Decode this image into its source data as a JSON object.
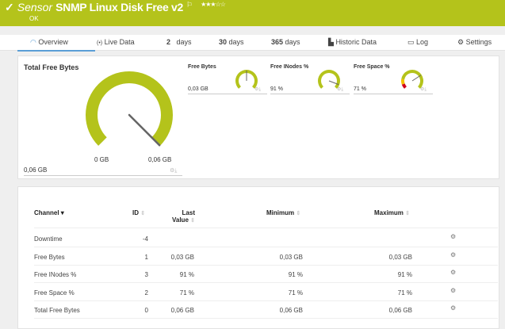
{
  "header": {
    "status_icon": "check-icon",
    "sensor_label": "Sensor",
    "title": "SNMP Linux Disk Free v2",
    "flag_icon": "flag-icon",
    "stars": "★★★☆☆",
    "rating": 3,
    "status": "OK",
    "color": "#b4c31b"
  },
  "tabs": [
    {
      "label": "Overview",
      "icon": "gauge-icon",
      "active": true
    },
    {
      "label": "Live Data",
      "icon": "broadcast-icon"
    },
    {
      "num": "2",
      "label": "days"
    },
    {
      "num": "30",
      "label": "days"
    },
    {
      "num": "365",
      "label": "days"
    },
    {
      "label": "Historic Data",
      "icon": "chart-icon"
    },
    {
      "label": "Log",
      "icon": "log-icon"
    },
    {
      "label": "Settings",
      "icon": "gear-icon"
    }
  ],
  "main_gauge": {
    "title": "Total Free Bytes",
    "value": "0,06 GB",
    "min": "0 GB",
    "max": "0,06 GB",
    "fraction": 1.0
  },
  "small_gauges": [
    {
      "label": "Free Bytes",
      "value": "0,03 GB",
      "fraction": 0.5
    },
    {
      "label": "Free INodes %",
      "value": "91 %",
      "fraction": 0.91
    },
    {
      "label": "Free Space %",
      "value": "71 %",
      "fraction": 0.71
    }
  ],
  "table": {
    "headers": {
      "channel": "Channel",
      "id": "ID",
      "last": "Last",
      "last2": "Value",
      "min": "Minimum",
      "max": "Maximum"
    },
    "rows": [
      {
        "channel": "Downtime",
        "id": "-4",
        "last": "",
        "min": "",
        "max": ""
      },
      {
        "channel": "Free Bytes",
        "id": "1",
        "last": "0,03 GB",
        "min": "0,03 GB",
        "max": "0,03 GB"
      },
      {
        "channel": "Free INodes %",
        "id": "3",
        "last": "91 %",
        "min": "91 %",
        "max": "91 %"
      },
      {
        "channel": "Free Space %",
        "id": "2",
        "last": "71 %",
        "min": "71 %",
        "max": "71 %"
      },
      {
        "channel": "Total Free Bytes",
        "id": "0",
        "last": "0,06 GB",
        "min": "0,06 GB",
        "max": "0,06 GB"
      }
    ]
  }
}
